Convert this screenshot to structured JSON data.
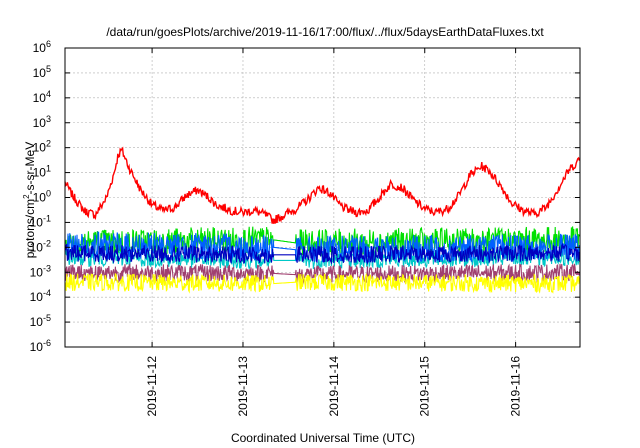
{
  "chart_data": {
    "type": "line",
    "title": "/data/run/goesPlots/archive/2019-11-16/17:00/flux/../flux/5daysEarthDataFluxes.txt",
    "xlabel": "Coordinated Universal Time (UTC)",
    "ylabel": {
      "prefix": "protons/cm",
      "sup": "2",
      "suffix": "-s-sr-MeV"
    },
    "xlim": [
      "2019-11-11T01:00",
      "2019-11-16T17:00"
    ],
    "ylim": [
      1e-06,
      1000000.0
    ],
    "yscale": "log",
    "grid": true,
    "legend": "none",
    "x_ticks": [
      {
        "value": "2019-11-12T00:00",
        "label": "2019-11-12"
      },
      {
        "value": "2019-11-13T00:00",
        "label": "2019-11-13"
      },
      {
        "value": "2019-11-14T00:00",
        "label": "2019-11-14"
      },
      {
        "value": "2019-11-15T00:00",
        "label": "2019-11-15"
      },
      {
        "value": "2019-11-16T00:00",
        "label": "2019-11-16"
      }
    ],
    "y_ticks": [
      {
        "value": 1e-06,
        "base": "10",
        "exp": "-6"
      },
      {
        "value": 1e-05,
        "base": "10",
        "exp": "-5"
      },
      {
        "value": 0.0001,
        "base": "10",
        "exp": "-4"
      },
      {
        "value": 0.001,
        "base": "10",
        "exp": "-3"
      },
      {
        "value": 0.01,
        "base": "10",
        "exp": "-2"
      },
      {
        "value": 0.1,
        "base": "10",
        "exp": "-1"
      },
      {
        "value": 1,
        "base": "10",
        "exp": "0"
      },
      {
        "value": 10,
        "base": "10",
        "exp": "1"
      },
      {
        "value": 100,
        "base": "10",
        "exp": "2"
      },
      {
        "value": 1000,
        "base": "10",
        "exp": "3"
      },
      {
        "value": 10000,
        "base": "10",
        "exp": "4"
      },
      {
        "value": 100000,
        "base": "10",
        "exp": "5"
      },
      {
        "value": 1000000,
        "base": "10",
        "exp": "6"
      }
    ],
    "series": [
      {
        "color": "#ff0000",
        "x": [
          "2019-11-11T01:00",
          "2019-11-11T03:00",
          "2019-11-11T06:00",
          "2019-11-11T09:00",
          "2019-11-11T12:00",
          "2019-11-11T14:00",
          "2019-11-11T15:00",
          "2019-11-11T16:00",
          "2019-11-11T18:00",
          "2019-11-11T21:00",
          "2019-11-12T00:00",
          "2019-11-12T03:00",
          "2019-11-12T06:00",
          "2019-11-12T09:00",
          "2019-11-12T12:00",
          "2019-11-12T15:00",
          "2019-11-12T17:00",
          "2019-11-12T21:00",
          "2019-11-13T00:00",
          "2019-11-13T03:00",
          "2019-11-13T06:00",
          "2019-11-13T08:00",
          "2019-11-13T11:00",
          "2019-11-13T14:00",
          "2019-11-13T17:00",
          "2019-11-13T20:00",
          "2019-11-13T23:00",
          "2019-11-14T01:00",
          "2019-11-14T03:00",
          "2019-11-14T06:00",
          "2019-11-14T09:00",
          "2019-11-14T12:00",
          "2019-11-14T15:00",
          "2019-11-14T18:00",
          "2019-11-14T21:00",
          "2019-11-15T00:00",
          "2019-11-15T03:00",
          "2019-11-15T06:00",
          "2019-11-15T09:00",
          "2019-11-15T12:00",
          "2019-11-15T15:00",
          "2019-11-15T17:00",
          "2019-11-15T20:00",
          "2019-11-15T23:00",
          "2019-11-16T02:00",
          "2019-11-16T05:00",
          "2019-11-16T08:00",
          "2019-11-16T11:00",
          "2019-11-16T14:00",
          "2019-11-16T17:00"
        ],
        "values": [
          4,
          1.2,
          0.3,
          0.2,
          1,
          10,
          50,
          80,
          15,
          2,
          0.5,
          0.3,
          0.4,
          1.2,
          2,
          1,
          0.5,
          0.3,
          0.25,
          0.3,
          0.2,
          0.12,
          0.2,
          0.35,
          0.8,
          2.5,
          1.5,
          0.6,
          0.35,
          0.25,
          0.3,
          1,
          3.5,
          2.5,
          0.8,
          0.35,
          0.25,
          0.35,
          1.2,
          8,
          18,
          12,
          3,
          0.6,
          0.3,
          0.22,
          0.4,
          2,
          12,
          35
        ]
      },
      {
        "color": "#00e000",
        "x": [
          "2019-11-11T01:00",
          "2019-11-13T08:00",
          "2019-11-13T14:00",
          "2019-11-16T17:00"
        ],
        "values": [
          0.015,
          0.02,
          0.015,
          0.02
        ]
      },
      {
        "color": "#00c8c8",
        "x": [
          "2019-11-11T01:00",
          "2019-11-13T08:00",
          "2019-11-13T14:00",
          "2019-11-16T17:00"
        ],
        "values": [
          0.004,
          0.003,
          0.003,
          0.004
        ]
      },
      {
        "color": "#0060ff",
        "x": [
          "2019-11-11T01:00",
          "2019-11-13T08:00",
          "2019-11-13T14:00",
          "2019-11-16T17:00"
        ],
        "values": [
          0.012,
          0.01,
          0.008,
          0.01
        ]
      },
      {
        "color": "#0000c0",
        "x": [
          "2019-11-11T01:00",
          "2019-11-13T08:00",
          "2019-11-13T14:00",
          "2019-11-16T17:00"
        ],
        "values": [
          0.006,
          0.005,
          0.005,
          0.006
        ]
      },
      {
        "color": "#a04070",
        "x": [
          "2019-11-11T01:00",
          "2019-11-13T08:00",
          "2019-11-13T14:00",
          "2019-11-16T17:00"
        ],
        "values": [
          0.001,
          0.0009,
          0.0008,
          0.001
        ]
      },
      {
        "color": "#ffff00",
        "x": [
          "2019-11-11T01:00",
          "2019-11-13T08:00",
          "2019-11-13T14:00",
          "2019-11-16T17:00"
        ],
        "values": [
          0.0004,
          0.00035,
          0.0004,
          0.00035
        ]
      }
    ]
  }
}
